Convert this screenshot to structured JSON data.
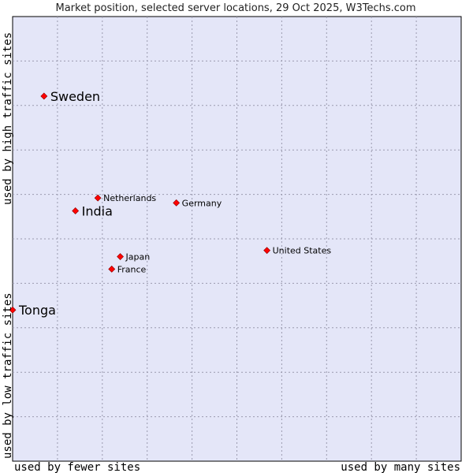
{
  "chart_data": {
    "type": "scatter",
    "title": "Market position, selected server locations, 29 Oct 2025, W3Techs.com",
    "xlabel_left": "used by fewer sites",
    "xlabel_right": "used by many sites",
    "ylabel_top": "used by high traffic sites",
    "ylabel_bottom": "used by low traffic sites",
    "xlim": [
      0,
      100
    ],
    "ylim": [
      0,
      100
    ],
    "grid": true,
    "plot_background": "#e4e6f8",
    "marker_color": "#ff0000",
    "points": [
      {
        "name": "Sweden",
        "x": 7.0,
        "y": 82.1,
        "emphasis": true
      },
      {
        "name": "India",
        "x": 14.0,
        "y": 56.3,
        "emphasis": true
      },
      {
        "name": "Tonga",
        "x": 0.0,
        "y": 34.0,
        "emphasis": true
      },
      {
        "name": "Netherlands",
        "x": 19.0,
        "y": 59.2,
        "emphasis": false
      },
      {
        "name": "Germany",
        "x": 36.5,
        "y": 58.1,
        "emphasis": false
      },
      {
        "name": "United States",
        "x": 56.7,
        "y": 47.4,
        "emphasis": false
      },
      {
        "name": "Japan",
        "x": 24.0,
        "y": 46.0,
        "emphasis": false
      },
      {
        "name": "France",
        "x": 22.1,
        "y": 43.2,
        "emphasis": false
      }
    ]
  }
}
